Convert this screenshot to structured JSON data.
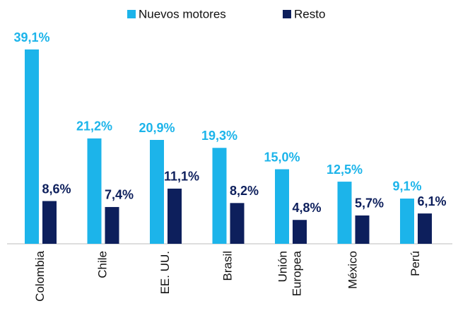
{
  "chart_data": {
    "type": "bar",
    "categories": [
      "Colombia",
      "Chile",
      "EE. UU.",
      "Brasil",
      "Unión Europea",
      "México",
      "Perú"
    ],
    "series": [
      {
        "name": "Nuevos motores",
        "color": "#1cb4ea",
        "values": [
          39.1,
          21.2,
          20.9,
          19.3,
          15.0,
          12.5,
          9.1
        ],
        "value_labels": [
          "39,1%",
          "21,2%",
          "20,9%",
          "19,3%",
          "15,0%",
          "12,5%",
          "9,1%"
        ]
      },
      {
        "name": "Resto",
        "color": "#0d1f5c",
        "values": [
          8.6,
          7.4,
          11.1,
          8.2,
          4.8,
          5.7,
          6.1
        ],
        "value_labels": [
          "8,6%",
          "7,4%",
          "11,1%",
          "8,2%",
          "4,8%",
          "5,7%",
          "6,1%"
        ]
      }
    ],
    "legend": "top"
  }
}
